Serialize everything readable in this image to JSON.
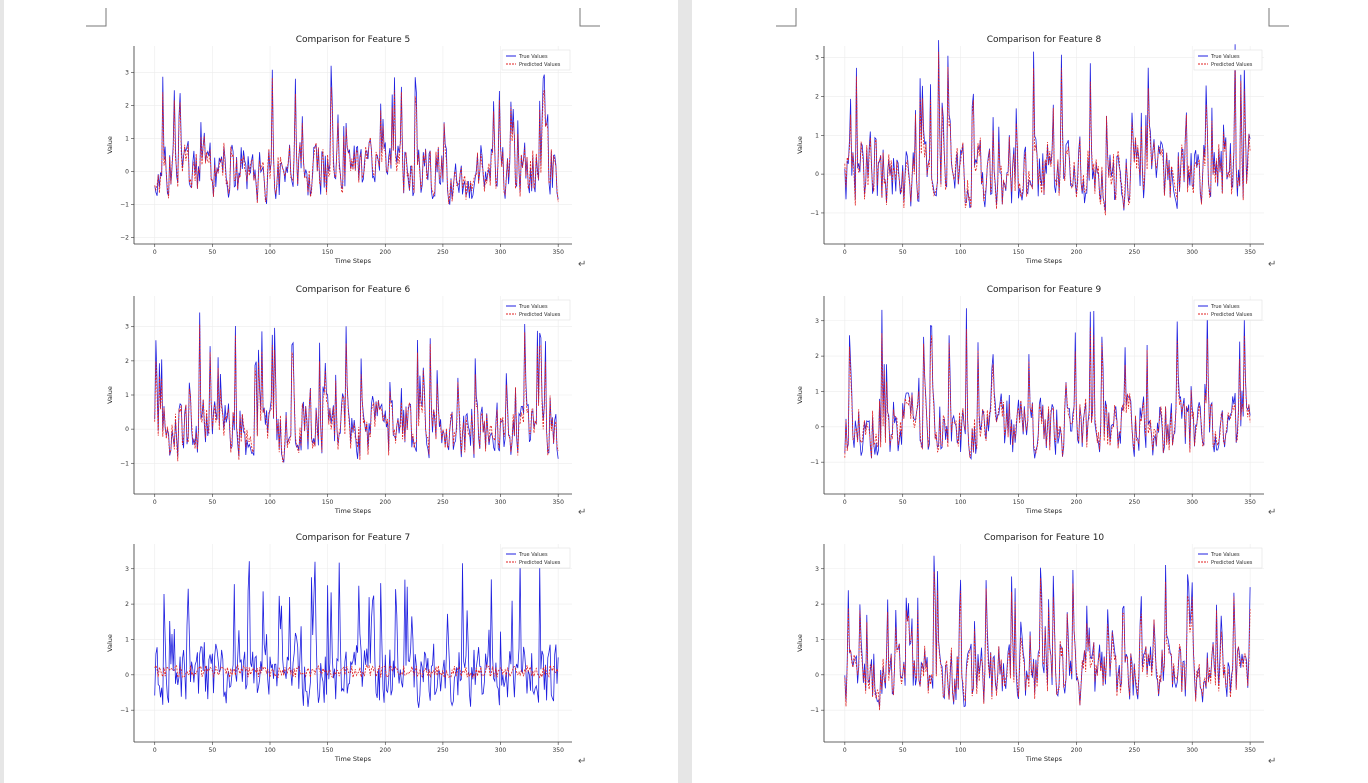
{
  "document": {
    "return_mark": "↵",
    "colors": {
      "true_line": "#1f1fe0",
      "pred_line": "#e02020",
      "page_bg": "#ffffff",
      "gap_bg": "#e6e6e6"
    }
  },
  "chart_data": [
    {
      "type": "line",
      "feature": 5,
      "seed": 5,
      "title": "Comparison for Feature 5",
      "xlabel": "Time Steps",
      "ylabel": "Value",
      "xlim": [
        -18,
        362
      ],
      "ylim": [
        -2.2,
        3.8
      ],
      "xticks": [
        0,
        50,
        100,
        150,
        200,
        250,
        300,
        350
      ],
      "yticks": [
        -2,
        -1,
        0,
        1,
        2,
        3
      ],
      "grid": true,
      "legend_position": "top-right",
      "pred_quality": "good",
      "series": [
        {
          "name": "True Values",
          "style": "solid",
          "color": "#1f1fe0"
        },
        {
          "name": "Predicted Values",
          "style": "dashed",
          "color": "#e02020"
        }
      ]
    },
    {
      "type": "line",
      "feature": 6,
      "seed": 6,
      "title": "Comparison for Feature 6",
      "xlabel": "Time Steps",
      "ylabel": "Value",
      "xlim": [
        -18,
        362
      ],
      "ylim": [
        -1.9,
        3.9
      ],
      "xticks": [
        0,
        50,
        100,
        150,
        200,
        250,
        300,
        350
      ],
      "yticks": [
        -1,
        0,
        1,
        2,
        3
      ],
      "grid": true,
      "legend_position": "top-right",
      "pred_quality": "good",
      "series": [
        {
          "name": "True Values",
          "style": "solid",
          "color": "#1f1fe0"
        },
        {
          "name": "Predicted Values",
          "style": "dashed",
          "color": "#e02020"
        }
      ]
    },
    {
      "type": "line",
      "feature": 7,
      "seed": 7,
      "title": "Comparison for Feature 7",
      "xlabel": "Time Steps",
      "ylabel": "Value",
      "xlim": [
        -18,
        362
      ],
      "ylim": [
        -1.9,
        3.7
      ],
      "xticks": [
        0,
        50,
        100,
        150,
        200,
        250,
        300,
        350
      ],
      "yticks": [
        -1,
        0,
        1,
        2,
        3
      ],
      "grid": true,
      "legend_position": "top-right",
      "pred_quality": "flat",
      "series": [
        {
          "name": "True Values",
          "style": "solid",
          "color": "#1f1fe0"
        },
        {
          "name": "Predicted Values",
          "style": "dashed",
          "color": "#e02020"
        }
      ]
    },
    {
      "type": "line",
      "feature": 8,
      "seed": 8,
      "title": "Comparison for Feature 8",
      "xlabel": "Time Steps",
      "ylabel": "Value",
      "xlim": [
        -18,
        362
      ],
      "ylim": [
        -1.8,
        3.3
      ],
      "xticks": [
        0,
        50,
        100,
        150,
        200,
        250,
        300,
        350
      ],
      "yticks": [
        -1,
        0,
        1,
        2,
        3
      ],
      "grid": true,
      "legend_position": "top-right",
      "pred_quality": "good",
      "series": [
        {
          "name": "True Values",
          "style": "solid",
          "color": "#1f1fe0"
        },
        {
          "name": "Predicted Values",
          "style": "dashed",
          "color": "#e02020"
        }
      ]
    },
    {
      "type": "line",
      "feature": 9,
      "seed": 9,
      "title": "Comparison for Feature 9",
      "xlabel": "Time Steps",
      "ylabel": "Value",
      "xlim": [
        -18,
        362
      ],
      "ylim": [
        -1.9,
        3.7
      ],
      "xticks": [
        0,
        50,
        100,
        150,
        200,
        250,
        300,
        350
      ],
      "yticks": [
        -1,
        0,
        1,
        2,
        3
      ],
      "grid": true,
      "legend_position": "top-right",
      "pred_quality": "good",
      "series": [
        {
          "name": "True Values",
          "style": "solid",
          "color": "#1f1fe0"
        },
        {
          "name": "Predicted Values",
          "style": "dashed",
          "color": "#e02020"
        }
      ]
    },
    {
      "type": "line",
      "feature": 10,
      "seed": 10,
      "title": "Comparison for Feature 10",
      "xlabel": "Time Steps",
      "ylabel": "Value",
      "xlim": [
        -18,
        362
      ],
      "ylim": [
        -1.9,
        3.7
      ],
      "xticks": [
        0,
        50,
        100,
        150,
        200,
        250,
        300,
        350
      ],
      "yticks": [
        -1,
        0,
        1,
        2,
        3
      ],
      "grid": true,
      "legend_position": "top-right",
      "pred_quality": "good",
      "series": [
        {
          "name": "True Values",
          "style": "solid",
          "color": "#1f1fe0"
        },
        {
          "name": "Predicted Values",
          "style": "dashed",
          "color": "#e02020"
        }
      ]
    }
  ]
}
